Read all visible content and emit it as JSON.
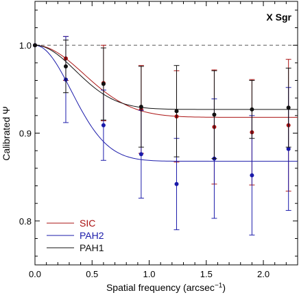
{
  "chart_data": {
    "type": "scatter",
    "annotation": "X Sgr",
    "xlabel": "Spatial frequency (arcsec",
    "xlabel_sup": "−1",
    "xlabel_end": ")",
    "ylabel": "Calibrated Ψ",
    "xlim": [
      0.0,
      2.3
    ],
    "ylim": [
      0.75,
      1.05
    ],
    "xticks": [
      0.0,
      0.5,
      1.0,
      1.5,
      2.0
    ],
    "xtick_labels": [
      "0.0",
      "0.5",
      "1.0",
      "1.5",
      "2.0"
    ],
    "yticks": [
      0.8,
      0.9,
      1.0
    ],
    "ytick_labels": [
      "0.8",
      "0.9",
      "1.0"
    ],
    "reference_line": 1.0,
    "legend_position": "bottom-left",
    "series": [
      {
        "name": "SIC",
        "color": "#aa1111",
        "x": [
          0.0,
          0.27,
          0.6,
          0.93,
          1.24,
          1.57,
          1.9,
          2.22
        ],
        "y": [
          1.0,
          0.985,
          0.957,
          0.927,
          0.919,
          0.907,
          0.901,
          0.909
        ],
        "err": [
          0,
          0.025,
          0.043,
          0.05,
          0.052,
          0.065,
          0.06,
          0.075
        ],
        "fit": {
          "plateau": 0.918,
          "scale": 0.6
        }
      },
      {
        "name": "PAH2",
        "color": "#1a1aaa",
        "x": [
          0.0,
          0.27,
          0.6,
          0.93,
          1.24,
          1.57,
          1.9,
          2.22
        ],
        "y": [
          1.0,
          0.961,
          0.909,
          0.876,
          0.842,
          0.871,
          0.852,
          0.882
        ],
        "err": [
          0,
          0.049,
          0.04,
          0.05,
          0.052,
          0.068,
          0.068,
          0.07
        ],
        "fit": {
          "plateau": 0.868,
          "scale": 0.45
        }
      },
      {
        "name": "PAH1",
        "color": "#111111",
        "x": [
          0.0,
          0.27,
          0.6,
          0.93,
          1.24,
          1.57,
          1.9,
          2.22
        ],
        "y": [
          1.0,
          0.976,
          0.956,
          0.93,
          0.925,
          0.921,
          0.927,
          0.929
        ],
        "err": [
          0,
          0.03,
          0.041,
          0.046,
          0.052,
          0.05,
          0.033,
          0.045
        ],
        "fit": {
          "plateau": 0.927,
          "scale": 0.5
        }
      }
    ]
  }
}
